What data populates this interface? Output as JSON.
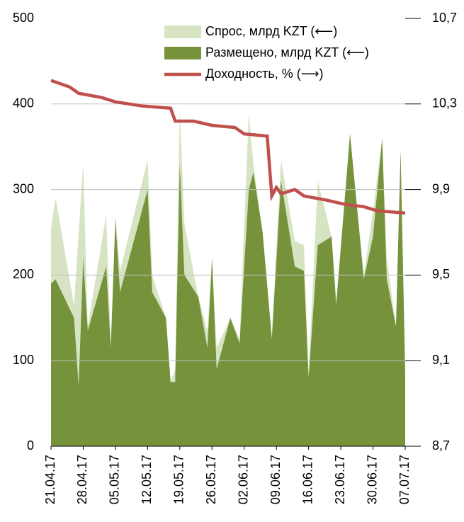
{
  "chart_data": {
    "type": "area-line",
    "x": [
      "21.04.17",
      "22.04.17",
      "26.04.17",
      "27.04.17",
      "28.04.17",
      "29.04.17",
      "03.05.17",
      "04.05.17",
      "05.05.17",
      "06.05.17",
      "12.05.17",
      "13.05.17",
      "16.05.17",
      "17.05.17",
      "18.05.17",
      "19.05.17",
      "20.05.17",
      "23.05.17",
      "25.05.17",
      "26.05.17",
      "27.05.17",
      "30.05.17",
      "01.06.17",
      "03.06.17",
      "04.06.17",
      "06.06.17",
      "08.06.17",
      "10.06.17",
      "13.06.17",
      "15.06.17",
      "16.06.17",
      "18.06.17",
      "21.06.17",
      "22.06.17",
      "25.06.17",
      "28.06.17",
      "30.06.17",
      "02.07.17",
      "03.07.17",
      "05.07.17",
      "06.07.17",
      "07.07.17"
    ],
    "series": [
      {
        "name": "Спрос, млрд KZT (⟵)",
        "color": "#d7e4c4",
        "values": [
          255,
          290,
          165,
          250,
          330,
          140,
          270,
          120,
          270,
          205,
          335,
          200,
          150,
          75,
          90,
          395,
          260,
          175,
          135,
          220,
          115,
          150,
          125,
          390,
          330,
          250,
          130,
          335,
          240,
          235,
          85,
          310,
          245,
          170,
          365,
          200,
          275,
          360,
          220,
          140,
          345,
          85
        ]
      },
      {
        "name": "Размещено, млрд KZT (⟵)",
        "color": "#76933c",
        "values": [
          190,
          195,
          150,
          70,
          220,
          135,
          210,
          115,
          265,
          180,
          300,
          180,
          150,
          75,
          75,
          330,
          200,
          175,
          115,
          220,
          90,
          150,
          120,
          300,
          320,
          250,
          125,
          310,
          210,
          205,
          80,
          235,
          245,
          165,
          365,
          195,
          245,
          360,
          195,
          140,
          345,
          85
        ]
      },
      {
        "name": "Доходность, % (⟶)",
        "color": "#c0504d",
        "axis": "y2",
        "x": [
          "21.04.17",
          "25.04.17",
          "27.04.17",
          "02.05.17",
          "05.05.17",
          "11.05.17",
          "17.05.17",
          "18.05.17",
          "22.05.17",
          "26.05.17",
          "31.05.17",
          "02.06.17",
          "07.06.17",
          "08.06.17",
          "09.06.17",
          "10.06.17",
          "13.06.17",
          "15.06.17",
          "20.06.17",
          "24.06.17",
          "28.06.17",
          "01.07.17",
          "07.07.17"
        ],
        "values": [
          10.41,
          10.38,
          10.35,
          10.33,
          10.31,
          10.29,
          10.28,
          10.22,
          10.22,
          10.2,
          10.19,
          10.16,
          10.15,
          9.87,
          9.91,
          9.88,
          9.9,
          9.87,
          9.85,
          9.83,
          9.82,
          9.8,
          9.79
        ]
      }
    ],
    "xlim": [
      "21.04.17",
      "07.07.17"
    ],
    "xticks": [
      "21.04.17",
      "28.04.17",
      "05.05.17",
      "12.05.17",
      "19.05.17",
      "26.05.17",
      "02.06.17",
      "09.06.17",
      "16.06.17",
      "23.06.17",
      "30.06.17",
      "07.07.17"
    ],
    "ylim": [
      0,
      500
    ],
    "yticks": [
      0,
      100,
      200,
      300,
      400,
      500
    ],
    "y2lim": [
      8.7,
      10.7
    ],
    "y2ticks": [
      {
        "value": 8.7,
        "label": "8,7"
      },
      {
        "value": 9.1,
        "label": "9,1"
      },
      {
        "value": 9.5,
        "label": "9,5"
      },
      {
        "value": 9.9,
        "label": "9,9"
      },
      {
        "value": 10.3,
        "label": "10,3"
      },
      {
        "value": 10.7,
        "label": "10,7"
      }
    ],
    "grid": true,
    "legend": "top"
  }
}
